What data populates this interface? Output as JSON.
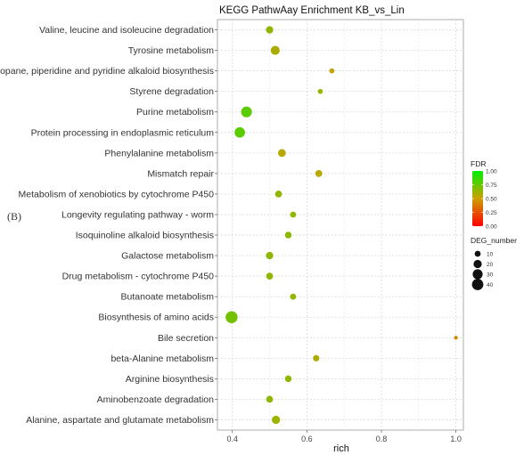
{
  "panel_label": "(B)",
  "chart_data": {
    "type": "scatter",
    "title": "KEGG PathwAay Enrichment  KB_vs_Lin",
    "xlabel": "rich",
    "ylabel": "",
    "xlim": [
      0.36,
      1.02
    ],
    "xticks": [
      0.4,
      0.6,
      0.8,
      1.0
    ],
    "xtick_labels": [
      "0.4",
      "0.6",
      "0.8",
      "1.0"
    ],
    "grid": true,
    "legend_position": "right",
    "points": [
      {
        "pathway": "Valine, leucine and isoleucine degradation",
        "rich": 0.5,
        "fdr": 0.65,
        "deg_number": 14
      },
      {
        "pathway": "Tyrosine metabolism",
        "rich": 0.515,
        "fdr": 0.58,
        "deg_number": 22
      },
      {
        "pathway": "Tropane, piperidine and pyridine alkaloid biosynthesis",
        "rich": 0.667,
        "fdr": 0.52,
        "deg_number": 6
      },
      {
        "pathway": "Styrene degradation",
        "rich": 0.636,
        "fdr": 0.62,
        "deg_number": 6
      },
      {
        "pathway": "Purine metabolism",
        "rich": 0.438,
        "fdr": 0.78,
        "deg_number": 32
      },
      {
        "pathway": "Protein processing in endoplasmic reticulum",
        "rich": 0.42,
        "fdr": 0.78,
        "deg_number": 30
      },
      {
        "pathway": "Phenylalanine metabolism",
        "rich": 0.533,
        "fdr": 0.55,
        "deg_number": 16
      },
      {
        "pathway": "Mismatch repair",
        "rich": 0.632,
        "fdr": 0.55,
        "deg_number": 12
      },
      {
        "pathway": "Metabolism of xenobiotics by cytochrome P450",
        "rich": 0.524,
        "fdr": 0.65,
        "deg_number": 12
      },
      {
        "pathway": "Longevity regulating pathway - worm",
        "rich": 0.563,
        "fdr": 0.65,
        "deg_number": 9
      },
      {
        "pathway": "Isoquinoline alkaloid biosynthesis",
        "rich": 0.55,
        "fdr": 0.65,
        "deg_number": 11
      },
      {
        "pathway": "Galactose metabolism",
        "rich": 0.5,
        "fdr": 0.65,
        "deg_number": 14
      },
      {
        "pathway": "Drug metabolism - cytochrome P450",
        "rich": 0.5,
        "fdr": 0.65,
        "deg_number": 12
      },
      {
        "pathway": "Butanoate metabolism",
        "rich": 0.563,
        "fdr": 0.65,
        "deg_number": 9
      },
      {
        "pathway": "Biosynthesis of amino acids",
        "rich": 0.398,
        "fdr": 0.72,
        "deg_number": 40
      },
      {
        "pathway": "Bile secretion",
        "rich": 1.0,
        "fdr": 0.42,
        "deg_number": 3
      },
      {
        "pathway": "beta-Alanine metabolism",
        "rich": 0.625,
        "fdr": 0.58,
        "deg_number": 10
      },
      {
        "pathway": "Arginine biosynthesis",
        "rich": 0.55,
        "fdr": 0.65,
        "deg_number": 11
      },
      {
        "pathway": "Aminobenzoate degradation",
        "rich": 0.5,
        "fdr": 0.65,
        "deg_number": 12
      },
      {
        "pathway": "Alanine, aspartate and glutamate metabolism",
        "rich": 0.517,
        "fdr": 0.62,
        "deg_number": 18
      }
    ],
    "legend_fdr": {
      "title": "FDR",
      "ticks": [
        "1.00",
        "0.75",
        "0.50",
        "0.25",
        "0.00"
      ],
      "colors": [
        "#00ee00",
        "#ff0000"
      ]
    },
    "legend_size": {
      "title": "DEG_number",
      "items": [
        {
          "label": "10",
          "value": 10
        },
        {
          "label": "20",
          "value": 20
        },
        {
          "label": "30",
          "value": 30
        },
        {
          "label": "40",
          "value": 40
        }
      ]
    }
  }
}
